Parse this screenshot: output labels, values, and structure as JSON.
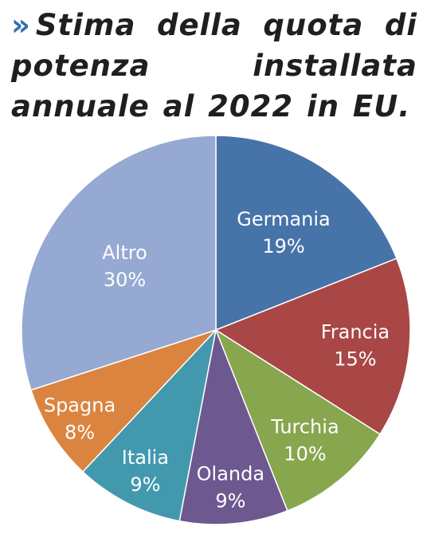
{
  "title_marker": "»",
  "title": "Stima della quota di potenza installata annuale al 2022 in EU.",
  "chart_data": {
    "type": "pie",
    "title": "Stima della quota di potenza installata annuale al 2022 in EU.",
    "start_angle_deg": 0,
    "direction": "clockwise",
    "slices": [
      {
        "label": "Germania",
        "value": 19,
        "value_label": "19%",
        "color": "#4673a8"
      },
      {
        "label": "Francia",
        "value": 15,
        "value_label": "15%",
        "color": "#a84745"
      },
      {
        "label": "Turchia",
        "value": 10,
        "value_label": "10%",
        "color": "#87a64d"
      },
      {
        "label": "Olanda",
        "value": 9,
        "value_label": "9%",
        "color": "#6e5890"
      },
      {
        "label": "Italia",
        "value": 9,
        "value_label": "9%",
        "color": "#4299ae"
      },
      {
        "label": "Spagna",
        "value": 8,
        "value_label": "8%",
        "color": "#db8440"
      },
      {
        "label": "Altro",
        "value": 30,
        "value_label": "30%",
        "color": "#95a9d2"
      }
    ]
  }
}
